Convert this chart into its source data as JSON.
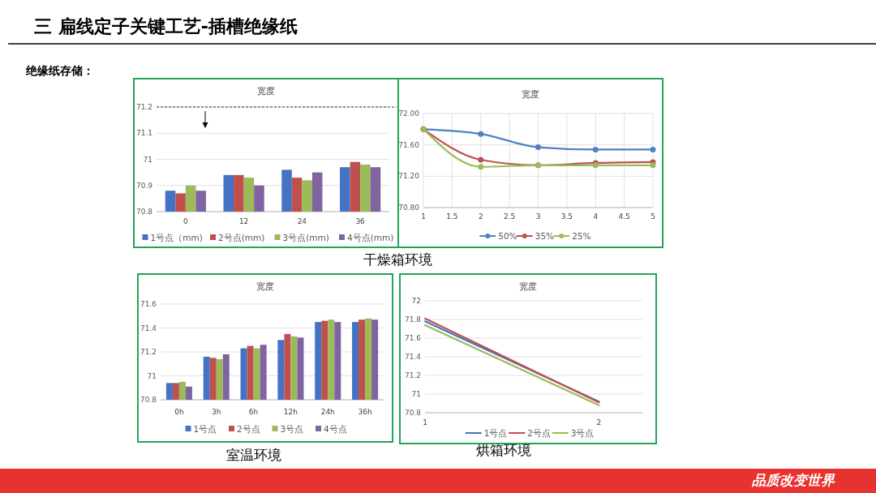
{
  "chart_data": [
    {
      "type": "other",
      "title": "三 扁线定子关键工艺-插槽绝缘纸",
      "subtitle": "绝缘纸存储：",
      "annotations": [
        "干燥箱环境",
        "室温环境",
        "烘箱环境",
        "品质改变世界"
      ]
    },
    {
      "type": "bar",
      "title": "宽度",
      "categories": [
        "0",
        "12",
        "24",
        "36"
      ],
      "ylim": [
        70.8,
        71.2
      ],
      "yticks": [
        70.8,
        70.9,
        71,
        71.1,
        71.2
      ],
      "grid": "y",
      "legend": "bottom",
      "ref_lines": [
        {
          "axis": "y",
          "value": 71.2,
          "line_style": "dashed",
          "color": "#333333"
        }
      ],
      "series": [
        {
          "name": "1号点（mm)",
          "color": "#4472c4",
          "values": [
            70.88,
            70.94,
            70.96,
            70.97
          ]
        },
        {
          "name": "2号点(mm)",
          "color": "#c0504d",
          "values": [
            70.87,
            70.94,
            70.93,
            70.99
          ]
        },
        {
          "name": "3号点(mm)",
          "color": "#9bbb59",
          "values": [
            70.9,
            70.93,
            70.92,
            70.98
          ]
        },
        {
          "name": "4号点(mm)",
          "color": "#8064a2",
          "values": [
            70.88,
            70.9,
            70.95,
            70.97
          ]
        }
      ]
    },
    {
      "type": "line",
      "title": "宽度",
      "x": [
        1,
        2,
        3,
        4,
        5
      ],
      "xlim": [
        1,
        5
      ],
      "xticks": [
        1,
        1.5,
        2,
        2.5,
        3,
        3.5,
        4,
        4.5,
        5
      ],
      "ylim": [
        70.8,
        72
      ],
      "yticks": [
        {
          "value": 70.8,
          "label": "70.80"
        },
        {
          "value": 71.2,
          "label": "71.20"
        },
        {
          "value": 71.6,
          "label": "71.60"
        },
        {
          "value": 72,
          "label": "72.00"
        }
      ],
      "grid": true,
      "legend": "bottom",
      "marker": "circle",
      "series": [
        {
          "name": "50%",
          "color": "#4f81bd",
          "values": [
            71.8,
            71.74,
            71.57,
            71.54,
            71.54
          ]
        },
        {
          "name": "35%",
          "color": "#c0504d",
          "values": [
            71.8,
            71.41,
            71.34,
            71.37,
            71.38
          ]
        },
        {
          "name": "25%",
          "color": "#9bbb59",
          "values": [
            71.8,
            71.32,
            71.34,
            71.34,
            71.34
          ]
        }
      ]
    },
    {
      "type": "bar",
      "title": "宽度",
      "categories": [
        "0h",
        "3h",
        "6h",
        "12h",
        "24h",
        "36h"
      ],
      "ylim": [
        70.8,
        71.6
      ],
      "yticks": [
        70.8,
        71,
        71.2,
        71.4,
        71.6
      ],
      "grid": "y",
      "legend": "bottom",
      "series": [
        {
          "name": "1号点",
          "color": "#4472c4",
          "values": [
            70.94,
            71.16,
            71.23,
            71.3,
            71.45,
            71.45
          ]
        },
        {
          "name": "2号点",
          "color": "#c0504d",
          "values": [
            70.94,
            71.15,
            71.25,
            71.35,
            71.46,
            71.47
          ]
        },
        {
          "name": "3号点",
          "color": "#9bbb59",
          "values": [
            70.95,
            71.14,
            71.23,
            71.33,
            71.47,
            71.48
          ]
        },
        {
          "name": "4号点",
          "color": "#8064a2",
          "values": [
            70.91,
            71.18,
            71.26,
            71.32,
            71.45,
            71.47
          ]
        }
      ]
    },
    {
      "type": "line",
      "title": "宽度",
      "x": [
        1,
        2
      ],
      "xlim": [
        1,
        2.25
      ],
      "xticks": [
        1,
        2
      ],
      "ylim": [
        70.8,
        72
      ],
      "yticks": [
        70.8,
        71,
        71.2,
        71.4,
        71.6,
        71.8,
        72
      ],
      "grid": "y",
      "legend": "bottom",
      "marker": "none",
      "series": [
        {
          "name": "1号点",
          "color": "#4472c4",
          "values": [
            71.78,
            70.92
          ]
        },
        {
          "name": "2号点",
          "color": "#c0504d",
          "values": [
            71.81,
            70.91
          ]
        },
        {
          "name": "3号点",
          "color": "#9bbb59",
          "values": [
            71.74,
            70.88
          ]
        }
      ]
    }
  ]
}
